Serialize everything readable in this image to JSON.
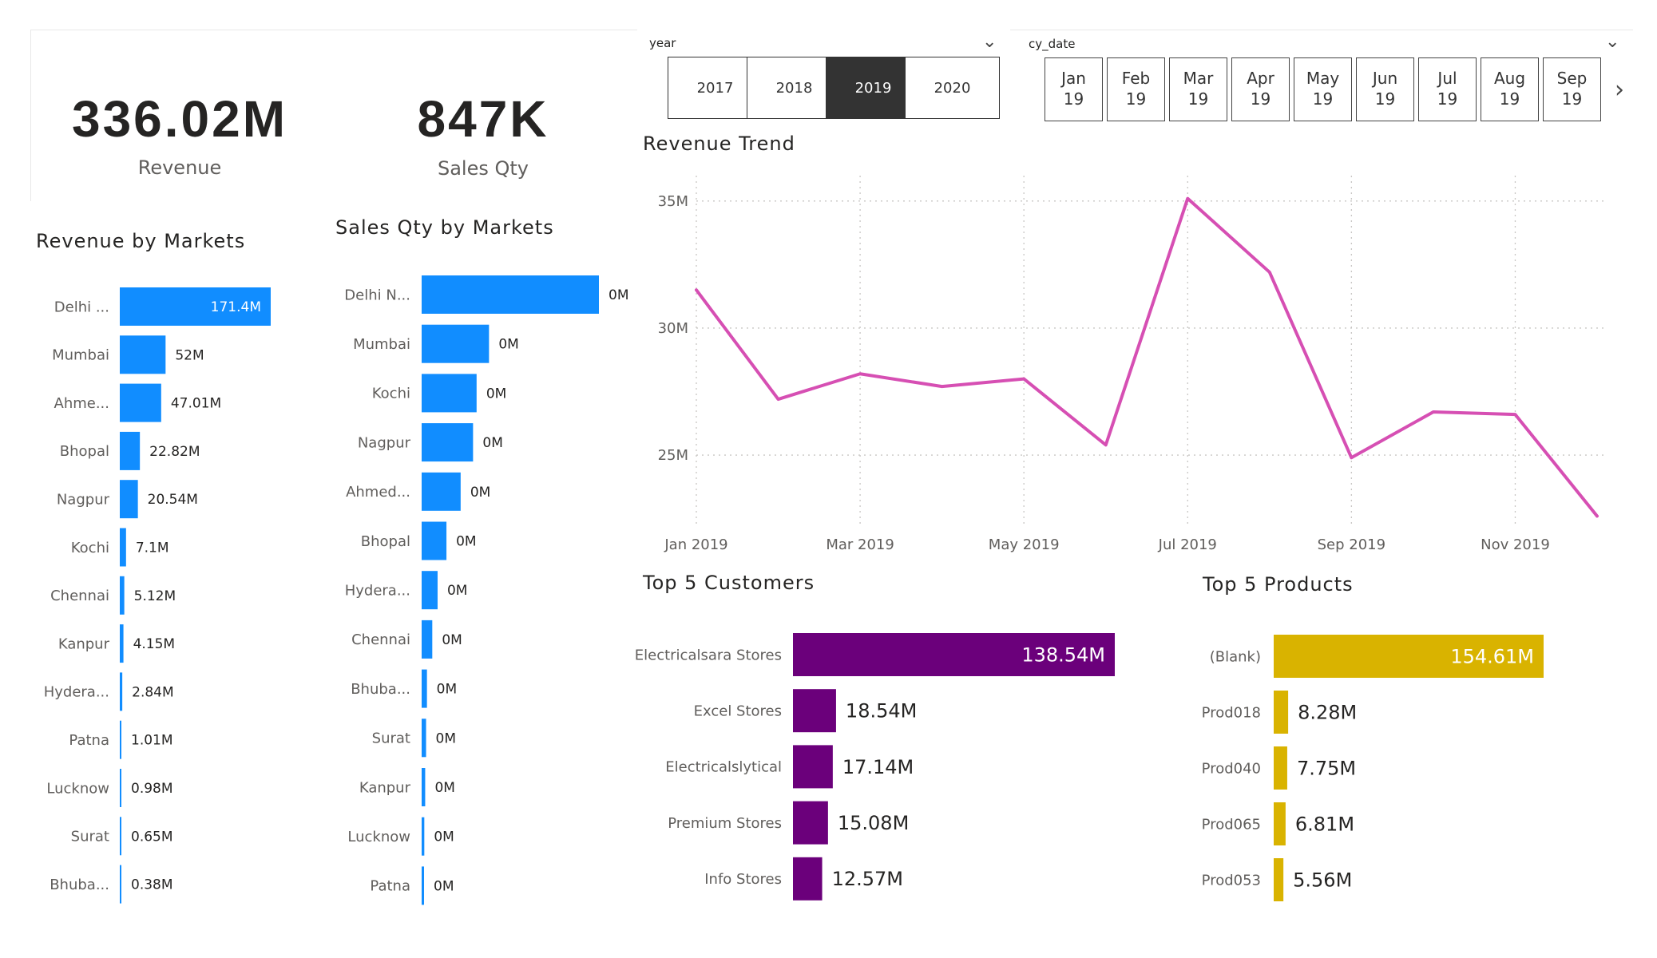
{
  "kpis": {
    "revenue": {
      "value": "336.02M",
      "label": "Revenue"
    },
    "sales_qty": {
      "value": "847K",
      "label": "Sales Qty"
    }
  },
  "year_slicer": {
    "title": "year",
    "options": [
      {
        "label": "2017",
        "selected": false
      },
      {
        "label": "2018",
        "selected": false
      },
      {
        "label": "2019",
        "selected": true
      },
      {
        "label": "2020",
        "selected": false
      }
    ]
  },
  "date_slicer": {
    "title": "cy_date",
    "options": [
      {
        "month": "Jan",
        "year": "19"
      },
      {
        "month": "Feb",
        "year": "19"
      },
      {
        "month": "Mar",
        "year": "19"
      },
      {
        "month": "Apr",
        "year": "19"
      },
      {
        "month": "May",
        "year": "19"
      },
      {
        "month": "Jun",
        "year": "19"
      },
      {
        "month": "Jul",
        "year": "19"
      },
      {
        "month": "Aug",
        "year": "19"
      },
      {
        "month": "Sep",
        "year": "19"
      }
    ]
  },
  "colors": {
    "markets_bar": "#118DFF",
    "trend_line": "#D64FB3",
    "customers_bar": "#6B007B",
    "products_bar": "#D9B300"
  },
  "chart_data": [
    {
      "id": "revenue-by-markets",
      "type": "bar",
      "orientation": "horizontal",
      "title": "Revenue by Markets",
      "categories": [
        "Delhi ...",
        "Mumbai",
        "Ahme...",
        "Bhopal",
        "Nagpur",
        "Kochi",
        "Chennai",
        "Kanpur",
        "Hydera...",
        "Patna",
        "Lucknow",
        "Surat",
        "Bhuba..."
      ],
      "values": [
        171.4,
        52,
        47.01,
        22.82,
        20.54,
        7.1,
        5.12,
        4.15,
        2.84,
        1.01,
        0.98,
        0.65,
        0.38
      ],
      "labels": [
        "171.4M",
        "52M",
        "47.01M",
        "22.82M",
        "20.54M",
        "7.1M",
        "5.12M",
        "4.15M",
        "2.84M",
        "1.01M",
        "0.98M",
        "0.65M",
        "0.38M"
      ],
      "units": "M"
    },
    {
      "id": "sales-qty-by-markets",
      "type": "bar",
      "orientation": "horizontal",
      "title": "Sales Qty by Markets",
      "categories": [
        "Delhi N...",
        "Mumbai",
        "Kochi",
        "Nagpur",
        "Ahmed...",
        "Bhopal",
        "Hydera...",
        "Chennai",
        "Bhuba...",
        "Surat",
        "Kanpur",
        "Lucknow",
        "Patna"
      ],
      "values": [
        100,
        38,
        31,
        29,
        22,
        14,
        9,
        6,
        3,
        2.5,
        2,
        1.5,
        1
      ],
      "labels": [
        "0M",
        "0M",
        "0M",
        "0M",
        "0M",
        "0M",
        "0M",
        "0M",
        "0M",
        "0M",
        "0M",
        "0M",
        "0M"
      ],
      "value_note": "relative values estimated from bar lengths"
    },
    {
      "id": "revenue-trend",
      "type": "line",
      "title": "Revenue Trend",
      "x": [
        "Jan 2019",
        "Feb 2019",
        "Mar 2019",
        "Apr 2019",
        "May 2019",
        "Jun 2019",
        "Jul 2019",
        "Aug 2019",
        "Sep 2019",
        "Oct 2019",
        "Nov 2019",
        "Dec 2019"
      ],
      "values": [
        31.5,
        27.2,
        28.2,
        27.7,
        28.0,
        25.4,
        35.1,
        32.2,
        24.9,
        26.7,
        26.6,
        22.6
      ],
      "x_tick_labels": [
        "Jan 2019",
        "Mar 2019",
        "May 2019",
        "Jul 2019",
        "Sep 2019",
        "Nov 2019"
      ],
      "x_tick_indices": [
        0,
        2,
        4,
        6,
        8,
        10
      ],
      "y_ticks": [
        25,
        30,
        35
      ],
      "y_tick_labels": [
        "25M",
        "30M",
        "35M"
      ],
      "ylim": [
        22.3,
        36.0
      ],
      "units": "M"
    },
    {
      "id": "top-5-customers",
      "type": "bar",
      "orientation": "horizontal",
      "title": "Top 5 Customers",
      "categories": [
        "Electricalsara Stores",
        "Excel Stores",
        "Electricalslytical",
        "Premium Stores",
        "Info Stores"
      ],
      "values": [
        138.54,
        18.54,
        17.14,
        15.08,
        12.57
      ],
      "labels": [
        "138.54M",
        "18.54M",
        "17.14M",
        "15.08M",
        "12.57M"
      ],
      "units": "M"
    },
    {
      "id": "top-5-products",
      "type": "bar",
      "orientation": "horizontal",
      "title": "Top 5 Products",
      "categories": [
        "(Blank)",
        "Prod018",
        "Prod040",
        "Prod065",
        "Prod053"
      ],
      "values": [
        154.61,
        8.28,
        7.75,
        6.81,
        5.56
      ],
      "labels": [
        "154.61M",
        "8.28M",
        "7.75M",
        "6.81M",
        "5.56M"
      ],
      "units": "M"
    }
  ]
}
